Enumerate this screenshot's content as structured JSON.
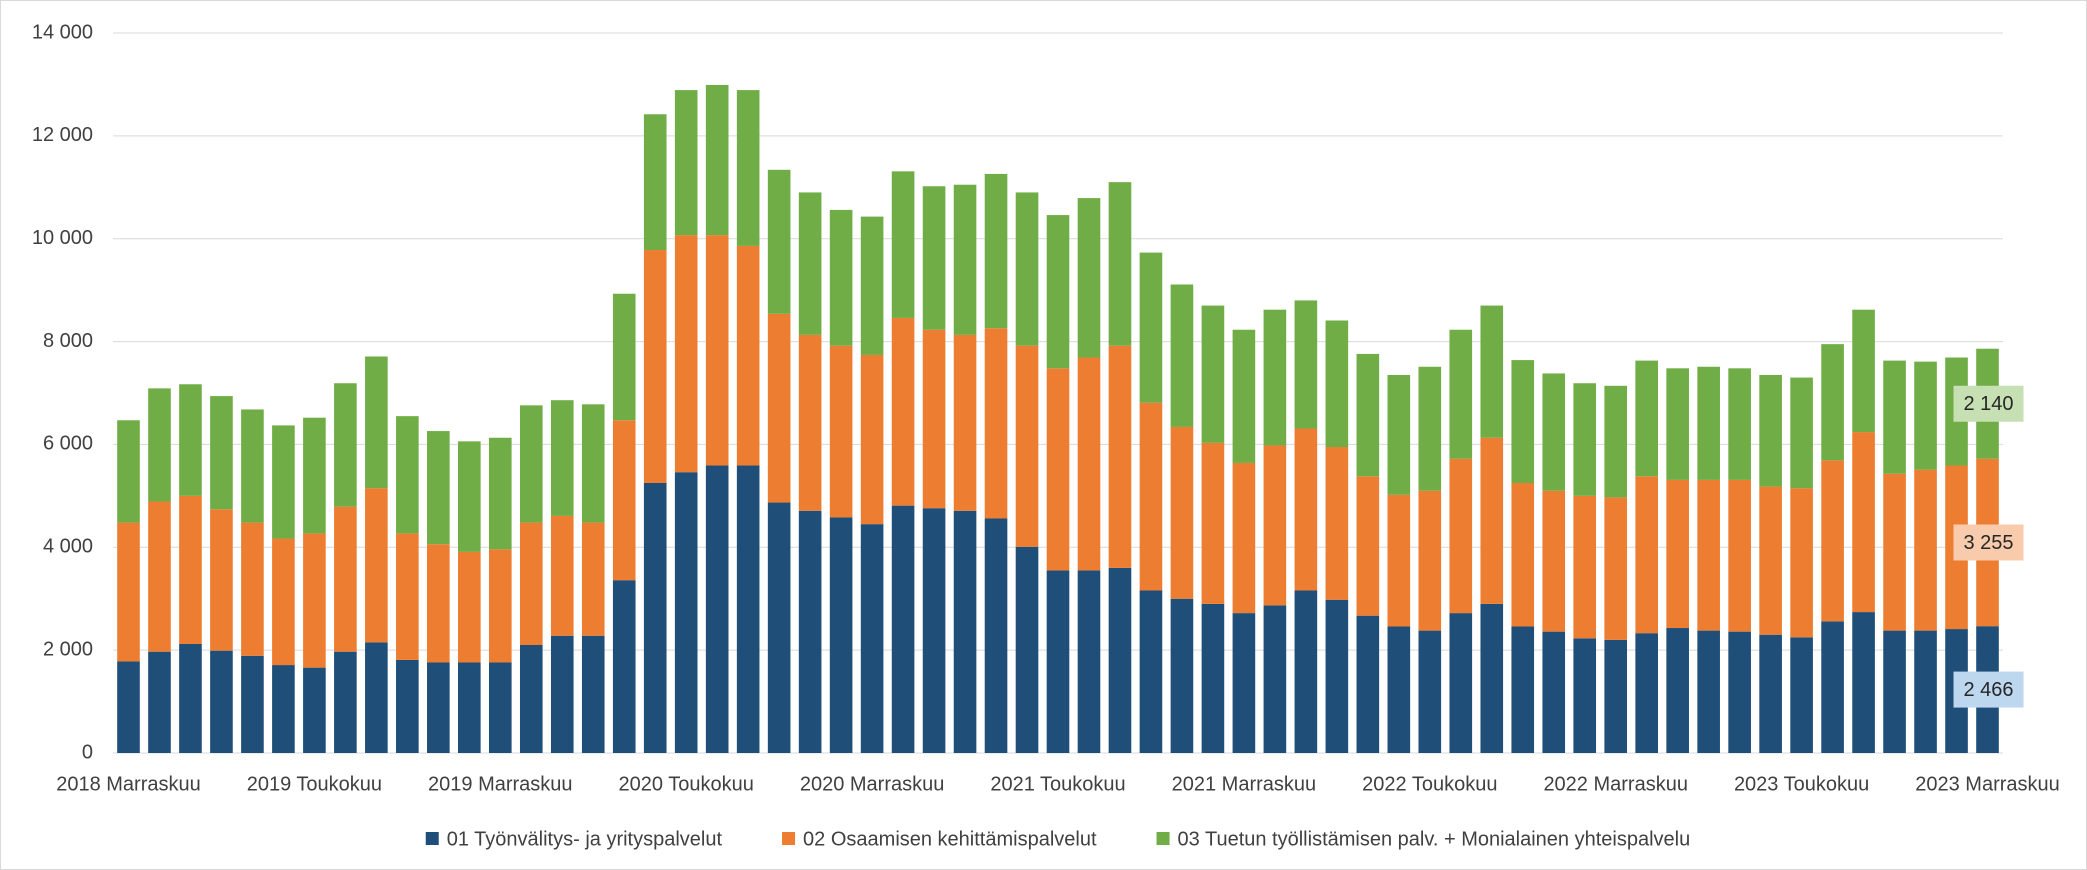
{
  "chart_data": {
    "type": "stacked_bar",
    "categories": [
      "2018 Marraskuu",
      null,
      null,
      null,
      null,
      null,
      "2019 Toukokuu",
      null,
      null,
      null,
      null,
      null,
      "2019 Marraskuu",
      null,
      null,
      null,
      null,
      null,
      "2020 Toukokuu",
      null,
      null,
      null,
      null,
      null,
      "2020 Marraskuu",
      null,
      null,
      null,
      null,
      null,
      "2021 Toukokuu",
      null,
      null,
      null,
      null,
      null,
      "2021 Marraskuu",
      null,
      null,
      null,
      null,
      null,
      "2022 Toukokuu",
      null,
      null,
      null,
      null,
      null,
      "2022 Marraskuu",
      null,
      null,
      null,
      null,
      null,
      "2023 Toukokuu",
      null,
      null,
      null,
      null,
      null,
      "2023 Marraskuu"
    ],
    "series": [
      {
        "name": "01 Työnvälitys- ja yrityspalvelut",
        "color": "#1f4e79",
        "label_bg": "#bdd7ee",
        "values": [
          1780,
          1970,
          2120,
          1990,
          1890,
          1710,
          1660,
          1970,
          2150,
          1810,
          1760,
          1760,
          1760,
          2100,
          2280,
          2280,
          3360,
          5250,
          5460,
          5590,
          5590,
          4870,
          4710,
          4580,
          4450,
          4810,
          4760,
          4710,
          4560,
          4010,
          3550,
          3550,
          3600,
          3160,
          3000,
          2900,
          2720,
          2870,
          3160,
          2980,
          2670,
          2460,
          2380,
          2720,
          2900,
          2460,
          2360,
          2230,
          2200,
          2330,
          2430,
          2380,
          2360,
          2300,
          2250,
          2560,
          2740,
          2380,
          2380,
          2410,
          2466
        ],
        "value_labels": [
          null,
          null,
          null,
          null,
          null,
          null,
          null,
          null,
          null,
          null,
          null,
          null,
          null,
          null,
          null,
          null,
          null,
          null,
          null,
          null,
          null,
          null,
          null,
          null,
          null,
          null,
          null,
          null,
          null,
          null,
          null,
          null,
          null,
          null,
          null,
          null,
          null,
          null,
          null,
          null,
          null,
          null,
          null,
          null,
          null,
          null,
          null,
          null,
          null,
          null,
          null,
          null,
          null,
          null,
          null,
          null,
          null,
          null,
          null,
          null,
          "2 466"
        ]
      },
      {
        "name": "02 Osaamisen kehittämispalvelut",
        "color": "#ed7d31",
        "label_bg": "#f8cbad",
        "values": [
          2700,
          2920,
          2880,
          2750,
          2590,
          2460,
          2610,
          2820,
          3000,
          2460,
          2300,
          2150,
          2200,
          2380,
          2330,
          2200,
          3110,
          4530,
          4610,
          4480,
          4270,
          3670,
          3420,
          3340,
          3290,
          3650,
          3470,
          3420,
          3700,
          3910,
          3930,
          4140,
          4320,
          3650,
          3340,
          3130,
          2920,
          3110,
          3150,
          2970,
          2710,
          2560,
          2720,
          3000,
          3230,
          2790,
          2740,
          2770,
          2770,
          3050,
          2880,
          2930,
          2950,
          2880,
          2900,
          3130,
          3500,
          3050,
          3130,
          3180,
          3255
        ],
        "value_labels": [
          null,
          null,
          null,
          null,
          null,
          null,
          null,
          null,
          null,
          null,
          null,
          null,
          null,
          null,
          null,
          null,
          null,
          null,
          null,
          null,
          null,
          null,
          null,
          null,
          null,
          null,
          null,
          null,
          null,
          null,
          null,
          null,
          null,
          null,
          null,
          null,
          null,
          null,
          null,
          null,
          null,
          null,
          null,
          null,
          null,
          null,
          null,
          null,
          null,
          null,
          null,
          null,
          null,
          null,
          null,
          null,
          null,
          null,
          null,
          null,
          "3 255"
        ]
      },
      {
        "name": "03 Tuetun työllistämisen palv. + Monialainen yhteispalvelu",
        "color": "#70ad47",
        "label_bg": "#c6e0b4",
        "values": [
          1990,
          2200,
          2170,
          2200,
          2200,
          2200,
          2250,
          2400,
          2560,
          2280,
          2200,
          2150,
          2170,
          2280,
          2250,
          2300,
          2460,
          2640,
          2820,
          2920,
          3030,
          2800,
          2770,
          2640,
          2690,
          2850,
          2790,
          2920,
          3000,
          2980,
          2980,
          3100,
          3180,
          2920,
          2770,
          2670,
          2590,
          2640,
          2490,
          2460,
          2380,
          2330,
          2410,
          2510,
          2570,
          2390,
          2280,
          2190,
          2170,
          2250,
          2170,
          2200,
          2170,
          2170,
          2150,
          2260,
          2380,
          2200,
          2100,
          2100,
          2140
        ],
        "value_labels": [
          null,
          null,
          null,
          null,
          null,
          null,
          null,
          null,
          null,
          null,
          null,
          null,
          null,
          null,
          null,
          null,
          null,
          null,
          null,
          null,
          null,
          null,
          null,
          null,
          null,
          null,
          null,
          null,
          null,
          null,
          null,
          null,
          null,
          null,
          null,
          null,
          null,
          null,
          null,
          null,
          null,
          null,
          null,
          null,
          null,
          null,
          null,
          null,
          null,
          null,
          null,
          null,
          null,
          null,
          null,
          null,
          null,
          null,
          null,
          null,
          "2 140"
        ]
      }
    ],
    "ylim": [
      0,
      14000
    ],
    "yticks": [
      0,
      {
        "value": 2000,
        "label": "2 000"
      },
      {
        "value": 4000,
        "label": "4 000"
      },
      {
        "value": 6000,
        "label": "6 000"
      },
      {
        "value": 8000,
        "label": "8 000"
      },
      {
        "value": 10000,
        "label": "10 000"
      },
      {
        "value": 12000,
        "label": "12 000"
      },
      {
        "value": 14000,
        "label": "14 000"
      }
    ],
    "grid": true,
    "legend": "bottom"
  }
}
